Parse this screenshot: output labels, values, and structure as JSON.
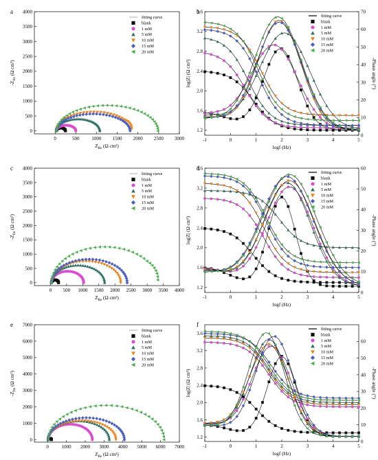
{
  "colors": {
    "blank": "#111111",
    "1 mM": "#d94fd1",
    "5 mM": "#2f6f63",
    "10 mM": "#f07f14",
    "15 mM": "#4a5fc1",
    "20 mM": "#48b04a",
    "fit": "#222222"
  },
  "chart_data": [
    {
      "panel": "a",
      "type": "scatter",
      "xlabel": "Z_Re (Ω cm²)",
      "ylabel": "-Z_Im (Ω cm²)",
      "xlim": [
        -500,
        3000
      ],
      "ylim": [
        -100,
        4000
      ],
      "xticks": [
        "0",
        "500",
        "1000",
        "1500",
        "2000",
        "2500",
        "3000"
      ],
      "yticks": [
        "0",
        "500",
        "1000",
        "1500",
        "2000",
        "2500",
        "3000",
        "3500",
        "4000"
      ],
      "legend": [
        "fitting curve",
        "blank",
        "1 mM",
        "5 mM",
        "10 mM",
        "15 mM",
        "20 mM"
      ],
      "series": [
        {
          "name": "blank",
          "rs": 30,
          "rct": 220,
          "depr": 0.45,
          "tail": 0
        },
        {
          "name": "1 mM",
          "rs": 30,
          "rct": 470,
          "depr": 0.4,
          "tail": 0
        },
        {
          "name": "5 mM",
          "rs": 30,
          "rct": 1050,
          "depr": 0.38,
          "tail": 0
        },
        {
          "name": "10 mM",
          "rs": 30,
          "rct": 1820,
          "depr": 0.35,
          "tail": 0.4
        },
        {
          "name": "15 mM",
          "rs": 30,
          "rct": 1780,
          "depr": 0.32,
          "tail": 0
        },
        {
          "name": "20 mM",
          "rs": 30,
          "rct": 2450,
          "depr": 0.35,
          "tail": 0
        }
      ]
    },
    {
      "panel": "b",
      "type": "line",
      "xlabel": "logf (Hz)",
      "ylabel": "log|Z| (Ω cm²)",
      "y2label": "-Phase angle (°)",
      "xlim": [
        -1,
        5
      ],
      "ylim": [
        1.1,
        3.6
      ],
      "y2lim": [
        0,
        70
      ],
      "xticks": [
        "-1",
        "0",
        "1",
        "2",
        "3",
        "4",
        "5"
      ],
      "yticks": [
        "1.2",
        "1.6",
        "2.0",
        "2.4",
        "2.8",
        "3.2",
        "3.6"
      ],
      "y2ticks": [
        "0",
        "10",
        "20",
        "30",
        "40",
        "50",
        "60",
        "70"
      ],
      "legend": [
        "fitting curve",
        "blank",
        "1 mM",
        "5 mM",
        "10 mM",
        "15 mM",
        "20 mM"
      ],
      "series": [
        {
          "name": "blank",
          "zlo": 1.2,
          "zhi": 2.4,
          "zc": 0.9,
          "pmax": 46,
          "pc": 1.95,
          "pw": 0.95,
          "pbase": 24
        },
        {
          "name": "1 mM",
          "zlo": 1.25,
          "zhi": 2.8,
          "zc": 0.6,
          "pmax": 48,
          "pc": 1.7,
          "pw": 1.3,
          "pbase": 22
        },
        {
          "name": "5 mM",
          "zlo": 1.3,
          "zhi": 3.1,
          "zc": 0.7,
          "pmax": 55,
          "pc": 2.1,
          "pw": 1.4,
          "pbase": 20
        },
        {
          "name": "10 mM",
          "zlo": 1.5,
          "zhi": 3.3,
          "zc": 1.2,
          "pmax": 62,
          "pc": 1.9,
          "pw": 1.2,
          "pbase": 18
        },
        {
          "name": "15 mM",
          "zlo": 1.3,
          "zhi": 3.25,
          "zc": 1.1,
          "pmax": 61,
          "pc": 1.9,
          "pw": 1.25,
          "pbase": 17
        },
        {
          "name": "20 mM",
          "zlo": 1.4,
          "zhi": 3.4,
          "zc": 1.1,
          "pmax": 64,
          "pc": 1.85,
          "pw": 1.3,
          "pbase": 15
        }
      ]
    },
    {
      "panel": "c",
      "type": "scatter",
      "xlabel": "Z_Re (Ω cm²)",
      "ylabel": "-Z_Im (Ω cm²)",
      "xlim": [
        -500,
        4000
      ],
      "ylim": [
        -100,
        4000
      ],
      "xticks": [
        "0",
        "500",
        "1000",
        "1500",
        "2000",
        "2500",
        "3000",
        "3500",
        "4000"
      ],
      "yticks": [
        "0",
        "500",
        "1000",
        "1500",
        "2000",
        "2500",
        "3000",
        "3500",
        "4000"
      ],
      "legend": [
        "fitting curve",
        "blank",
        "1 mM",
        "5 mM",
        "10 mM",
        "15 mM",
        "20 mM"
      ],
      "series": [
        {
          "name": "blank",
          "rs": 30,
          "rct": 220,
          "depr": 0.45,
          "tail": 0
        },
        {
          "name": "1 mM",
          "rs": 30,
          "rct": 1000,
          "depr": 0.4,
          "tail": 0
        },
        {
          "name": "5 mM",
          "rs": 30,
          "rct": 1650,
          "depr": 0.37,
          "tail": 0
        },
        {
          "name": "10 mM",
          "rs": 30,
          "rct": 2150,
          "depr": 0.35,
          "tail": 0
        },
        {
          "name": "15 mM",
          "rs": 30,
          "rct": 2350,
          "depr": 0.35,
          "tail": 0
        },
        {
          "name": "20 mM",
          "rs": 30,
          "rct": 3300,
          "depr": 0.38,
          "tail": 0.3
        }
      ]
    },
    {
      "panel": "d",
      "type": "line",
      "xlabel": "logf (Hz)",
      "ylabel": "log|Z| (Ω cm²)",
      "y2label": "-Phase angle (°)",
      "xlim": [
        -1,
        5
      ],
      "ylim": [
        1.1,
        3.6
      ],
      "y2lim": [
        0,
        60
      ],
      "xticks": [
        "-1",
        "0",
        "1",
        "2",
        "3",
        "4",
        "5"
      ],
      "yticks": [
        "1.2",
        "1.6",
        "2.0",
        "2.4",
        "2.8",
        "3.2",
        "3.6"
      ],
      "y2ticks": [
        "0",
        "10",
        "20",
        "30",
        "40",
        "50",
        "60"
      ],
      "legend": [
        "fitting curve",
        "blank",
        "1 mM",
        "5 mM",
        "10 mM",
        "15 mM",
        "20 mM"
      ],
      "series": [
        {
          "name": "blank",
          "zlo": 1.3,
          "zhi": 2.4,
          "zc": 0.9,
          "pmax": 43,
          "pc": 2.0,
          "pw": 0.75,
          "pbase": 22
        },
        {
          "name": "1 mM",
          "zlo": 1.4,
          "zhi": 3.0,
          "zc": 1.3,
          "pmax": 48,
          "pc": 2.3,
          "pw": 1.3,
          "pbase": 21
        },
        {
          "name": "5 mM",
          "zlo": 2.0,
          "zhi": 3.15,
          "zc": 1.9,
          "pmax": 50,
          "pc": 2.2,
          "pw": 1.3,
          "pbase": 20
        },
        {
          "name": "10 mM",
          "zlo": 1.5,
          "zhi": 3.3,
          "zc": 1.3,
          "pmax": 51,
          "pc": 2.3,
          "pw": 1.4,
          "pbase": 19
        },
        {
          "name": "15 mM",
          "zlo": 1.6,
          "zhi": 3.45,
          "zc": 1.4,
          "pmax": 53,
          "pc": 2.2,
          "pw": 1.45,
          "pbase": 17
        },
        {
          "name": "20 mM",
          "zlo": 1.7,
          "zhi": 3.5,
          "zc": 1.4,
          "pmax": 54,
          "pc": 2.3,
          "pw": 1.5,
          "pbase": 16
        }
      ]
    },
    {
      "panel": "e",
      "type": "scatter",
      "xlabel": "Z_Re (Ω cm²)",
      "ylabel": "-Z_Im (Ω cm²)",
      "xlim": [
        -700,
        7000
      ],
      "ylim": [
        -150,
        7000
      ],
      "xticks": [
        "0",
        "1000",
        "2000",
        "3000",
        "4000",
        "5000",
        "6000",
        "7000"
      ],
      "yticks": [
        "0",
        "1000",
        "2000",
        "3000",
        "4000",
        "5000",
        "6000",
        "7000"
      ],
      "legend": [
        "fitting curve",
        "blank",
        "1 mM",
        "5 mM",
        "10 mM",
        "15 mM",
        "20 mM"
      ],
      "series": [
        {
          "name": "blank",
          "rs": 30,
          "rct": 180,
          "depr": 0.45,
          "tail": 0
        },
        {
          "name": "1 mM",
          "rs": 30,
          "rct": 2350,
          "depr": 0.4,
          "tail": 0
        },
        {
          "name": "5 mM",
          "rs": 30,
          "rct": 3250,
          "depr": 0.35,
          "tail": 0
        },
        {
          "name": "10 mM",
          "rs": 30,
          "rct": 3600,
          "depr": 0.32,
          "tail": 0
        },
        {
          "name": "15 mM",
          "rs": 30,
          "rct": 4050,
          "depr": 0.33,
          "tail": 0
        },
        {
          "name": "20 mM",
          "rs": 30,
          "rct": 6150,
          "depr": 0.34,
          "tail": 0
        }
      ]
    },
    {
      "panel": "f",
      "type": "line",
      "xlabel": "logf (Hz)",
      "ylabel": "log|Z| (Ω cm²)",
      "y2label": "-Phase angle (°)",
      "xlim": [
        -1,
        5
      ],
      "ylim": [
        1.1,
        3.8
      ],
      "y2lim": [
        0,
        70
      ],
      "xticks": [
        "-1",
        "0",
        "1",
        "2",
        "3",
        "4",
        "5"
      ],
      "yticks": [
        "1.2",
        "1.6",
        "2.0",
        "2.4",
        "2.8",
        "3.2",
        "3.6"
      ],
      "y2ticks": [
        "0",
        "10",
        "20",
        "30",
        "40",
        "50",
        "60"
      ],
      "legend": [
        "fitting curve",
        "blank",
        "1 mM",
        "5 mM",
        "10 mM",
        "15 mM",
        "20 mM"
      ],
      "series": [
        {
          "name": "blank",
          "zlo": 1.3,
          "zhi": 2.4,
          "zc": 1.0,
          "pmax": 48,
          "pc": 2.0,
          "pw": 0.8,
          "pbase": 17
        },
        {
          "name": "1 mM",
          "zlo": 1.9,
          "zhi": 3.4,
          "zc": 1.5,
          "pmax": 54,
          "pc": 1.6,
          "pw": 1.1,
          "pbase": 19
        },
        {
          "name": "5 mM",
          "zlo": 2.0,
          "zhi": 3.55,
          "zc": 1.5,
          "pmax": 58,
          "pc": 1.5,
          "pw": 1.05,
          "pbase": 18
        },
        {
          "name": "10 mM",
          "zlo": 1.95,
          "zhi": 3.5,
          "zc": 1.5,
          "pmax": 55,
          "pc": 1.5,
          "pw": 1.1,
          "pbase": 19
        },
        {
          "name": "15 mM",
          "zlo": 2.1,
          "zhi": 3.6,
          "zc": 1.6,
          "pmax": 60,
          "pc": 1.7,
          "pw": 1.05,
          "pbase": 17
        },
        {
          "name": "20 mM",
          "zlo": 2.05,
          "zhi": 3.65,
          "zc": 1.5,
          "pmax": 62,
          "pc": 1.4,
          "pw": 1.0,
          "pbase": 16
        }
      ]
    }
  ]
}
